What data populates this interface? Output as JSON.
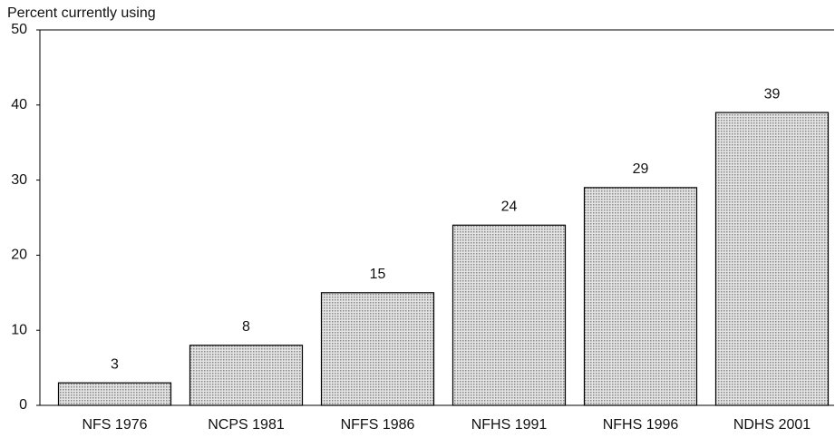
{
  "chart_data": {
    "type": "bar",
    "y_label": "Percent currently using",
    "categories": [
      "NFS 1976",
      "NCPS 1981",
      "NFFS 1986",
      "NFHS 1991",
      "NFHS 1996",
      "NDHS 2001"
    ],
    "values": [
      3,
      8,
      15,
      24,
      29,
      39
    ],
    "color": "#c8c8c8",
    "ylim": [
      0,
      50
    ],
    "yticks": [
      0,
      10,
      20,
      30,
      40,
      50
    ],
    "grid": false
  }
}
